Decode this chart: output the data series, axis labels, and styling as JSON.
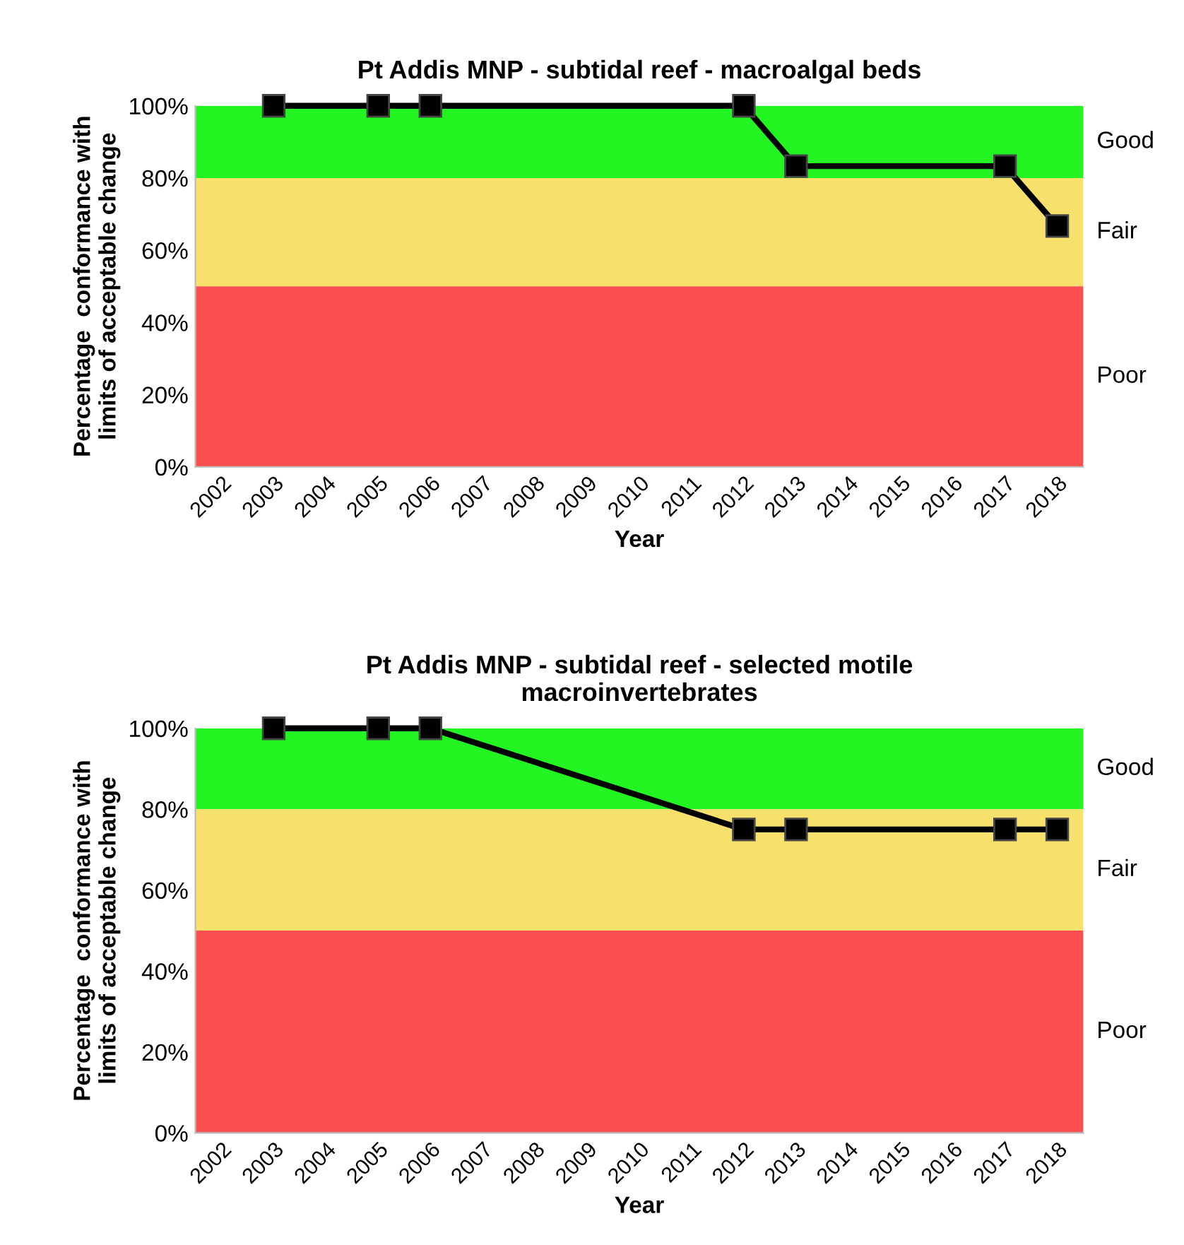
{
  "chart_data": [
    {
      "type": "line",
      "title": "Pt Addis MNP - subtidal reef - macroalgal beds",
      "xlabel": "Year",
      "ylabel": "Percentage  conformance with\nlimits of acceptable change",
      "categories": [
        "2002",
        "2003",
        "2004",
        "2005",
        "2006",
        "2007",
        "2008",
        "2009",
        "2010",
        "2011",
        "2012",
        "2013",
        "2014",
        "2015",
        "2016",
        "2017",
        "2018"
      ],
      "series": [
        {
          "color": "#000000",
          "values": [
            null,
            100,
            null,
            100,
            100,
            null,
            null,
            null,
            null,
            null,
            100,
            83.3,
            null,
            null,
            null,
            83.3,
            66.7
          ]
        }
      ],
      "ylim": [
        0,
        100
      ],
      "yticks": [
        {
          "value": 0,
          "label": "0%"
        },
        {
          "value": 20,
          "label": "20%"
        },
        {
          "value": 40,
          "label": "40%"
        },
        {
          "value": 60,
          "label": "60%"
        },
        {
          "value": 80,
          "label": "80%"
        },
        {
          "value": 100,
          "label": "100%"
        }
      ],
      "bands": [
        {
          "axis": "y",
          "from": 80,
          "to": 100,
          "label": "Good",
          "color": "#22f522"
        },
        {
          "axis": "y",
          "from": 50,
          "to": 80,
          "label": "Fair",
          "color": "#f7e06b"
        },
        {
          "axis": "y",
          "from": 0,
          "to": 50,
          "label": "Poor",
          "color": "#fc4f4f"
        }
      ],
      "marker": "square",
      "line_style": "solid",
      "grid": false,
      "legend": false
    },
    {
      "type": "line",
      "title": "Pt Addis MNP - subtidal reef - selected motile\nmacroinvertebrates",
      "xlabel": "Year",
      "ylabel": "Percentage  conformance with\nlimits of acceptable change",
      "categories": [
        "2002",
        "2003",
        "2004",
        "2005",
        "2006",
        "2007",
        "2008",
        "2009",
        "2010",
        "2011",
        "2012",
        "2013",
        "2014",
        "2015",
        "2016",
        "2017",
        "2018"
      ],
      "series": [
        {
          "color": "#000000",
          "values": [
            null,
            100,
            null,
            100,
            100,
            null,
            null,
            null,
            null,
            null,
            75,
            75,
            null,
            null,
            null,
            75,
            75
          ]
        }
      ],
      "ylim": [
        0,
        100
      ],
      "yticks": [
        {
          "value": 0,
          "label": "0%"
        },
        {
          "value": 20,
          "label": "20%"
        },
        {
          "value": 40,
          "label": "40%"
        },
        {
          "value": 60,
          "label": "60%"
        },
        {
          "value": 80,
          "label": "80%"
        },
        {
          "value": 100,
          "label": "100%"
        }
      ],
      "bands": [
        {
          "axis": "y",
          "from": 80,
          "to": 100,
          "label": "Good",
          "color": "#22f522"
        },
        {
          "axis": "y",
          "from": 50,
          "to": 80,
          "label": "Fair",
          "color": "#f7e06b"
        },
        {
          "axis": "y",
          "from": 0,
          "to": 50,
          "label": "Poor",
          "color": "#fc4f4f"
        }
      ],
      "marker": "square",
      "line_style": "solid",
      "grid": false,
      "legend": false
    }
  ]
}
